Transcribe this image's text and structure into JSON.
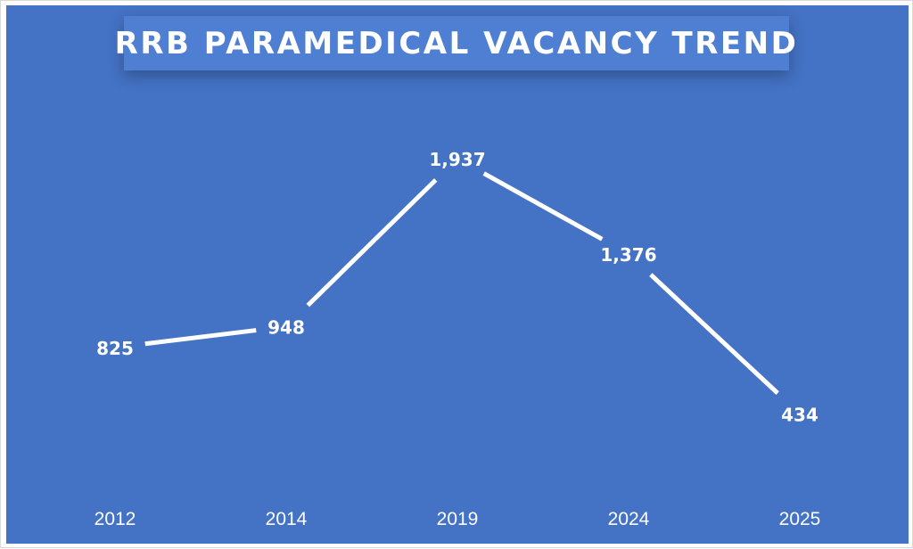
{
  "chart_data": {
    "type": "line",
    "title": "RRB PARAMEDICAL VACANCY TREND",
    "categories": [
      "2012",
      "2014",
      "2019",
      "2024",
      "2025"
    ],
    "series": [
      {
        "values": [
          825,
          948,
          1937,
          1376,
          434
        ]
      }
    ],
    "data_labels": [
      "825",
      "948",
      "1,937",
      "1,376",
      "434"
    ],
    "ylim": [
      0,
      2100
    ],
    "grid": false,
    "legend": "none",
    "colors": {
      "background": "#4472c4",
      "title_box": "#4f7fd2",
      "line": "#ffffff",
      "text": "#ffffff"
    }
  }
}
